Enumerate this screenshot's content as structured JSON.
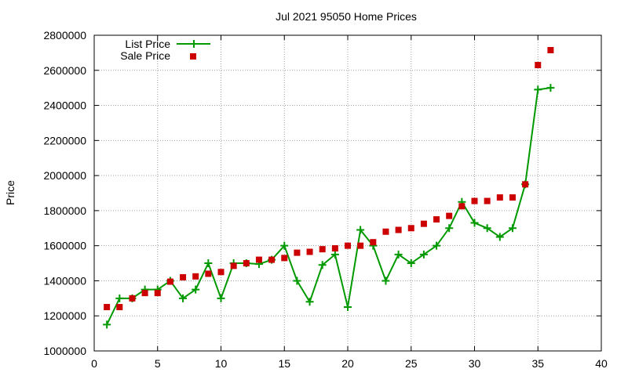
{
  "chart_data": {
    "type": "scatter",
    "title": "Jul 2021 95050 Home Prices",
    "xlabel": "",
    "ylabel": "Price",
    "xlim": [
      0,
      40
    ],
    "ylim": [
      1000000,
      2800000
    ],
    "xticks": [
      0,
      5,
      10,
      15,
      20,
      25,
      30,
      35,
      40
    ],
    "yticks": [
      1000000,
      1200000,
      1400000,
      1600000,
      1800000,
      2000000,
      2200000,
      2400000,
      2600000,
      2800000
    ],
    "grid": true,
    "legend_position": "top-left",
    "series": [
      {
        "name": "List Price",
        "style": "line-with-plus-markers",
        "color": "#009900",
        "x": [
          1,
          2,
          3,
          4,
          5,
          6,
          7,
          8,
          9,
          10,
          11,
          12,
          13,
          14,
          15,
          16,
          17,
          18,
          19,
          20,
          21,
          22,
          23,
          24,
          25,
          26,
          27,
          28,
          29,
          30,
          31,
          32,
          33,
          34,
          35,
          36
        ],
        "y": [
          1150000,
          1300000,
          1300000,
          1350000,
          1350000,
          1400000,
          1300000,
          1350000,
          1500000,
          1300000,
          1500000,
          1500000,
          1495000,
          1520000,
          1600000,
          1400000,
          1280000,
          1490000,
          1550000,
          1250000,
          1690000,
          1600000,
          1400000,
          1550000,
          1500000,
          1550000,
          1600000,
          1700000,
          1850000,
          1730000,
          1700000,
          1650000,
          1700000,
          1950000,
          2490000,
          2500000
        ]
      },
      {
        "name": "Sale Price",
        "style": "square-markers",
        "color": "#cc0000",
        "x": [
          1,
          2,
          3,
          4,
          5,
          6,
          7,
          8,
          9,
          10,
          11,
          12,
          13,
          14,
          15,
          16,
          17,
          18,
          19,
          20,
          21,
          22,
          23,
          24,
          25,
          26,
          27,
          28,
          29,
          30,
          31,
          32,
          33,
          34,
          35,
          36
        ],
        "y": [
          1250000,
          1250000,
          1300000,
          1330000,
          1330000,
          1395000,
          1420000,
          1425000,
          1440000,
          1450000,
          1485000,
          1500000,
          1520000,
          1520000,
          1530000,
          1560000,
          1565000,
          1580000,
          1585000,
          1600000,
          1600000,
          1620000,
          1680000,
          1690000,
          1700000,
          1725000,
          1750000,
          1770000,
          1825000,
          1855000,
          1855000,
          1875000,
          1875000,
          1950000,
          2630000,
          2715000
        ]
      }
    ]
  }
}
